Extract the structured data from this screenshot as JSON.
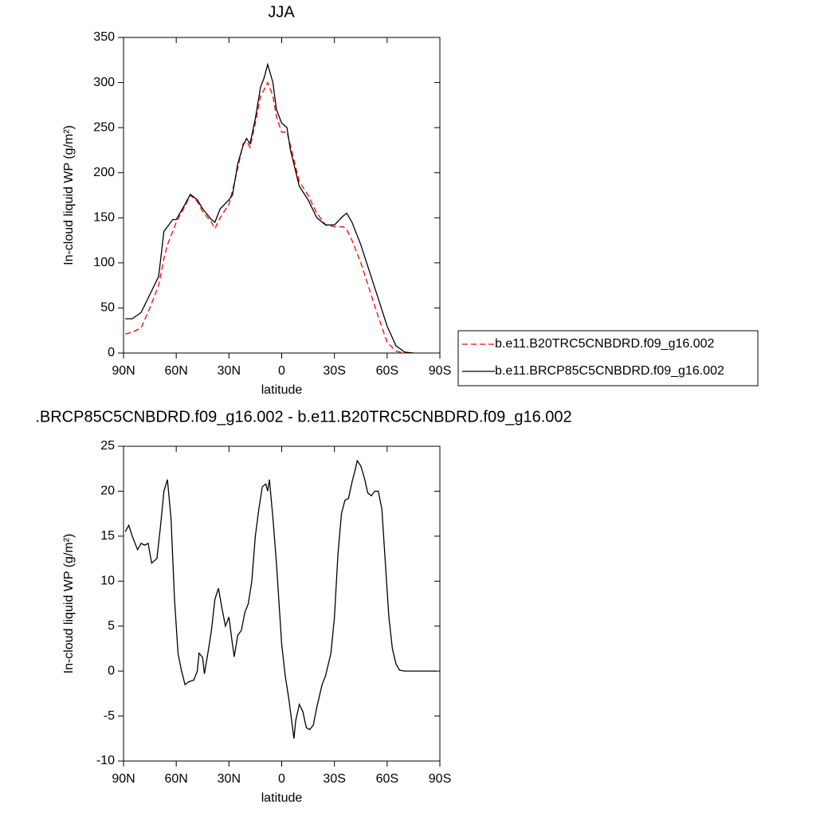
{
  "chart_data": [
    {
      "type": "line",
      "title": "JJA",
      "x_label": "latitude",
      "y_label": "In-cloud liquid WP (g/m²)",
      "x": [
        89,
        85,
        80,
        75,
        70,
        67,
        65,
        62,
        60,
        55,
        52,
        48,
        45,
        40,
        38,
        35,
        30,
        28,
        25,
        22,
        20,
        18,
        15,
        12,
        10,
        8,
        5,
        3,
        0,
        -3,
        -5,
        -10,
        -15,
        -20,
        -25,
        -30,
        -35,
        -37,
        -40,
        -45,
        -50,
        -55,
        -60,
        -65,
        -70,
        -75
      ],
      "series": [
        {
          "name": "b.e11.B20TRC5CNBDRD.f09_g16.002",
          "color": "#ff0000",
          "linestyle": "dashed",
          "values": [
            21,
            23,
            28,
            50,
            75,
            105,
            120,
            135,
            145,
            163,
            175,
            168,
            157,
            145,
            138,
            150,
            165,
            180,
            205,
            232,
            235,
            228,
            255,
            285,
            292,
            300,
            285,
            262,
            245,
            245,
            230,
            190,
            175,
            155,
            142,
            140,
            140,
            137,
            125,
            100,
            70,
            40,
            12,
            2,
            0,
            0
          ]
        },
        {
          "name": "b.e11.BRCP85C5CNBDRD.f09_g16.002",
          "color": "#000000",
          "linestyle": "solid",
          "values": [
            38,
            38,
            45,
            65,
            85,
            135,
            140,
            148,
            148,
            165,
            176,
            170,
            160,
            148,
            145,
            160,
            170,
            175,
            210,
            230,
            238,
            232,
            260,
            295,
            305,
            320,
            300,
            270,
            255,
            250,
            225,
            185,
            170,
            150,
            142,
            142,
            152,
            155,
            145,
            120,
            90,
            60,
            30,
            8,
            1,
            0
          ]
        }
      ],
      "xlim": [
        90,
        -90
      ],
      "xticks": [
        {
          "value": 90,
          "label": "90N"
        },
        {
          "value": 60,
          "label": "60N"
        },
        {
          "value": 30,
          "label": "30N"
        },
        0,
        {
          "value": -30,
          "label": "30S"
        },
        {
          "value": -60,
          "label": "60S"
        },
        {
          "value": -90,
          "label": "90S"
        }
      ],
      "ylim": [
        0,
        350
      ],
      "yticks": [
        0,
        50,
        100,
        150,
        200,
        250,
        300,
        350
      ],
      "legend": "right"
    },
    {
      "type": "line",
      "title": ".BRCP85C5CNBDRD.f09_g16.002 - b.e11.B20TRC5CNBDRD.f09_g16.002",
      "x_label": "latitude",
      "y_label": "In-cloud liquid WP (g/m²)",
      "x": [
        89,
        87,
        85,
        82,
        80,
        78,
        76,
        74,
        71,
        69,
        67,
        65,
        63,
        61,
        59,
        57,
        55,
        53,
        50,
        48,
        47,
        45,
        44,
        42,
        40,
        38,
        36,
        34,
        32,
        30,
        28,
        27,
        25,
        23,
        21,
        19,
        17,
        15,
        13,
        11,
        9,
        8,
        7,
        5,
        3,
        0,
        -2,
        -4,
        -6,
        -7,
        -8,
        -10,
        -12,
        -14,
        -16,
        -18,
        -20,
        -23,
        -25,
        -28,
        -30,
        -32,
        -34,
        -36,
        -38,
        -40,
        -42,
        -43,
        -45,
        -47,
        -49,
        -51,
        -53,
        -55,
        -57,
        -59,
        -61,
        -63,
        -65,
        -67,
        -70,
        -88
      ],
      "series": [
        {
          "color": "#000000",
          "linestyle": "solid",
          "values": [
            15.5,
            16.2,
            15,
            13.5,
            14.2,
            14,
            14.2,
            12,
            12.5,
            16,
            20,
            21.3,
            17,
            8,
            2,
            0,
            -1.5,
            -1.2,
            -1,
            0,
            2,
            1.5,
            -0.3,
            2,
            4.5,
            8,
            9.2,
            7,
            5,
            6,
            3,
            1.6,
            4,
            4.5,
            6.5,
            7.5,
            10,
            15,
            18,
            20.5,
            20.8,
            20,
            21.3,
            17,
            12,
            3,
            -0.5,
            -3,
            -6,
            -7.5,
            -5.5,
            -3.7,
            -4.5,
            -6.3,
            -6.5,
            -6,
            -4,
            -1.5,
            -0.5,
            2,
            6,
            13,
            17.5,
            19,
            19.2,
            21,
            22.5,
            23.4,
            22.8,
            21.5,
            19.8,
            19.5,
            20,
            20,
            18,
            12,
            6,
            2.5,
            0.8,
            0.1,
            0,
            0
          ]
        }
      ],
      "xlim": [
        90,
        -90
      ],
      "xticks": [
        {
          "value": 90,
          "label": "90N"
        },
        {
          "value": 60,
          "label": "60N"
        },
        {
          "value": 30,
          "label": "30N"
        },
        0,
        {
          "value": -30,
          "label": "30S"
        },
        {
          "value": -60,
          "label": "60S"
        },
        {
          "value": -90,
          "label": "90S"
        }
      ],
      "ylim": [
        -10,
        25
      ],
      "yticks": [
        -10,
        -5,
        0,
        5,
        10,
        15,
        20,
        25
      ]
    }
  ]
}
